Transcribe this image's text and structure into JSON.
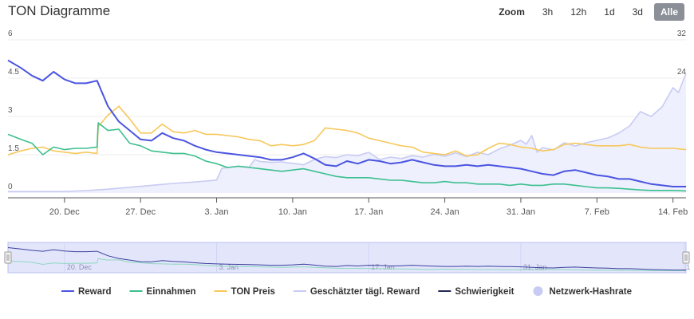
{
  "header": {
    "title": "TON Diagramme"
  },
  "zoom": {
    "label": "Zoom",
    "buttons": [
      "3h",
      "12h",
      "1d",
      "3d",
      "Alle"
    ],
    "active_index": 4
  },
  "chart_data": {
    "type": "line",
    "x_ticks": [
      "20. Dec",
      "27. Dec",
      "3. Jan",
      "10. Jan",
      "17. Jan",
      "24. Jan",
      "31. Jan",
      "7. Feb",
      "14. Feb"
    ],
    "x_tick_days": [
      0,
      7,
      14,
      21,
      28,
      35,
      42,
      49,
      56
    ],
    "x_range_days": [
      -5.2,
      57.2
    ],
    "y_left": {
      "ticks": [
        "0",
        "1.5",
        "3",
        "4.5",
        "6"
      ],
      "range": [
        0,
        6
      ]
    },
    "y_right": {
      "ticks": [
        "0",
        "8",
        "16",
        "24",
        "32"
      ],
      "range": [
        0,
        32
      ]
    },
    "grid": true,
    "legend_position": "bottom",
    "navigator_labels": [
      "20. Dec",
      "3. Jan",
      "17. Jan",
      "31. Jan",
      "1"
    ],
    "series": [
      {
        "name": "Reward",
        "axis": "left",
        "color": "#4b55e0",
        "points": [
          [
            -5.2,
            5.2
          ],
          [
            -4,
            4.9
          ],
          [
            -3,
            4.6
          ],
          [
            -2,
            4.4
          ],
          [
            -1,
            4.75
          ],
          [
            0,
            4.45
          ],
          [
            1,
            4.3
          ],
          [
            2,
            4.3
          ],
          [
            3,
            4.4
          ],
          [
            4,
            3.4
          ],
          [
            5,
            2.8
          ],
          [
            6,
            2.45
          ],
          [
            7,
            2.1
          ],
          [
            8,
            2.05
          ],
          [
            9,
            2.35
          ],
          [
            10,
            2.15
          ],
          [
            11,
            2.05
          ],
          [
            12,
            1.85
          ],
          [
            13,
            1.7
          ],
          [
            14,
            1.6
          ],
          [
            15,
            1.55
          ],
          [
            16,
            1.5
          ],
          [
            17,
            1.45
          ],
          [
            18,
            1.4
          ],
          [
            19,
            1.3
          ],
          [
            20,
            1.3
          ],
          [
            21,
            1.4
          ],
          [
            22,
            1.55
          ],
          [
            23,
            1.35
          ],
          [
            24,
            1.1
          ],
          [
            25,
            1.05
          ],
          [
            26,
            1.25
          ],
          [
            27,
            1.15
          ],
          [
            28,
            1.3
          ],
          [
            29,
            1.25
          ],
          [
            30,
            1.15
          ],
          [
            31,
            1.2
          ],
          [
            32,
            1.3
          ],
          [
            33,
            1.2
          ],
          [
            34,
            1.1
          ],
          [
            35,
            1.05
          ],
          [
            36,
            1.05
          ],
          [
            37,
            1.1
          ],
          [
            38,
            1.05
          ],
          [
            39,
            1.1
          ],
          [
            40,
            1.05
          ],
          [
            41,
            1.0
          ],
          [
            42,
            0.95
          ],
          [
            43,
            0.85
          ],
          [
            44,
            0.75
          ],
          [
            45,
            0.7
          ],
          [
            46,
            0.85
          ],
          [
            47,
            0.9
          ],
          [
            48,
            0.8
          ],
          [
            49,
            0.7
          ],
          [
            50,
            0.65
          ],
          [
            51,
            0.55
          ],
          [
            52,
            0.55
          ],
          [
            53,
            0.45
          ],
          [
            54,
            0.35
          ],
          [
            55,
            0.3
          ],
          [
            56,
            0.25
          ],
          [
            57.2,
            0.25
          ]
        ]
      },
      {
        "name": "Einnahmen",
        "axis": "left",
        "color": "#3cc08e",
        "points": [
          [
            -5.2,
            2.3
          ],
          [
            -4,
            2.1
          ],
          [
            -3,
            1.95
          ],
          [
            -2,
            1.5
          ],
          [
            -1,
            1.8
          ],
          [
            0,
            1.7
          ],
          [
            1,
            1.75
          ],
          [
            2,
            1.75
          ],
          [
            3,
            1.8
          ],
          [
            3.1,
            2.75
          ],
          [
            4,
            2.45
          ],
          [
            5,
            2.5
          ],
          [
            6,
            1.95
          ],
          [
            7,
            1.85
          ],
          [
            8,
            1.65
          ],
          [
            9,
            1.6
          ],
          [
            10,
            1.55
          ],
          [
            11,
            1.55
          ],
          [
            12,
            1.45
          ],
          [
            13,
            1.25
          ],
          [
            14,
            1.15
          ],
          [
            15,
            1.0
          ],
          [
            16,
            1.05
          ],
          [
            17,
            1.0
          ],
          [
            18,
            0.95
          ],
          [
            19,
            0.9
          ],
          [
            20,
            0.85
          ],
          [
            21,
            0.9
          ],
          [
            22,
            0.95
          ],
          [
            23,
            0.85
          ],
          [
            24,
            0.75
          ],
          [
            25,
            0.65
          ],
          [
            26,
            0.6
          ],
          [
            27,
            0.6
          ],
          [
            28,
            0.6
          ],
          [
            29,
            0.55
          ],
          [
            30,
            0.5
          ],
          [
            31,
            0.5
          ],
          [
            32,
            0.45
          ],
          [
            33,
            0.4
          ],
          [
            34,
            0.4
          ],
          [
            35,
            0.45
          ],
          [
            36,
            0.4
          ],
          [
            37,
            0.4
          ],
          [
            38,
            0.35
          ],
          [
            39,
            0.35
          ],
          [
            40,
            0.35
          ],
          [
            41,
            0.3
          ],
          [
            42,
            0.35
          ],
          [
            43,
            0.3
          ],
          [
            44,
            0.3
          ],
          [
            45,
            0.35
          ],
          [
            46,
            0.35
          ],
          [
            47,
            0.3
          ],
          [
            48,
            0.25
          ],
          [
            49,
            0.2
          ],
          [
            50,
            0.2
          ],
          [
            51,
            0.18
          ],
          [
            52,
            0.15
          ],
          [
            53,
            0.12
          ],
          [
            54,
            0.1
          ],
          [
            55,
            0.1
          ],
          [
            56,
            0.1
          ],
          [
            57.2,
            0.08
          ]
        ]
      },
      {
        "name": "TON Preis",
        "axis": "left",
        "color": "#f7c85a",
        "points": [
          [
            -5.2,
            1.5
          ],
          [
            -4,
            1.65
          ],
          [
            -3,
            1.75
          ],
          [
            -2,
            1.8
          ],
          [
            -1,
            1.65
          ],
          [
            0,
            1.6
          ],
          [
            1,
            1.55
          ],
          [
            2,
            1.6
          ],
          [
            3,
            1.55
          ],
          [
            3.1,
            2.6
          ],
          [
            4,
            3.05
          ],
          [
            5,
            3.4
          ],
          [
            6,
            2.9
          ],
          [
            7,
            2.35
          ],
          [
            8,
            2.35
          ],
          [
            9,
            2.7
          ],
          [
            10,
            2.4
          ],
          [
            11,
            2.35
          ],
          [
            12,
            2.45
          ],
          [
            13,
            2.3
          ],
          [
            14,
            2.3
          ],
          [
            15,
            2.25
          ],
          [
            16,
            2.2
          ],
          [
            17,
            2.1
          ],
          [
            18,
            2.05
          ],
          [
            19,
            1.85
          ],
          [
            20,
            1.9
          ],
          [
            21,
            1.85
          ],
          [
            22,
            1.9
          ],
          [
            23,
            2.05
          ],
          [
            24,
            2.55
          ],
          [
            25,
            2.5
          ],
          [
            26,
            2.45
          ],
          [
            27,
            2.35
          ],
          [
            28,
            2.15
          ],
          [
            29,
            2.05
          ],
          [
            30,
            1.95
          ],
          [
            31,
            1.85
          ],
          [
            32,
            1.8
          ],
          [
            33,
            1.6
          ],
          [
            34,
            1.55
          ],
          [
            35,
            1.5
          ],
          [
            36,
            1.65
          ],
          [
            37,
            1.45
          ],
          [
            38,
            1.5
          ],
          [
            39,
            1.75
          ],
          [
            40,
            1.95
          ],
          [
            41,
            1.9
          ],
          [
            42,
            1.8
          ],
          [
            43,
            1.75
          ],
          [
            44,
            1.65
          ],
          [
            45,
            1.7
          ],
          [
            46,
            1.9
          ],
          [
            47,
            1.95
          ],
          [
            48,
            1.9
          ],
          [
            49,
            1.85
          ],
          [
            50,
            1.85
          ],
          [
            51,
            1.85
          ],
          [
            52,
            1.9
          ],
          [
            53,
            1.8
          ],
          [
            54,
            1.75
          ],
          [
            55,
            1.75
          ],
          [
            56,
            1.75
          ],
          [
            57.2,
            1.7
          ]
        ]
      },
      {
        "name": "Geschätzter tägl. Reward",
        "axis": "right",
        "color": "#c8cbf2",
        "points": [
          [
            -5.2,
            0.3
          ],
          [
            0,
            0.3
          ],
          [
            2,
            0.5
          ],
          [
            4,
            0.8
          ],
          [
            6,
            1.2
          ],
          [
            8,
            1.6
          ],
          [
            10,
            2.0
          ],
          [
            12,
            2.3
          ],
          [
            13,
            2.5
          ],
          [
            14,
            2.7
          ],
          [
            14.5,
            5.2
          ],
          [
            15,
            5.3
          ],
          [
            16,
            5.6
          ],
          [
            17,
            5.4
          ],
          [
            17.5,
            7.0
          ],
          [
            18,
            6.6
          ],
          [
            19,
            6.4
          ],
          [
            20,
            6.5
          ],
          [
            21,
            6.2
          ],
          [
            22,
            5.9
          ],
          [
            23,
            7.0
          ],
          [
            24,
            7.6
          ],
          [
            25,
            7.4
          ],
          [
            26,
            8.0
          ],
          [
            27,
            7.8
          ],
          [
            28,
            8.5
          ],
          [
            29,
            7.0
          ],
          [
            30,
            7.5
          ],
          [
            31,
            7.2
          ],
          [
            32,
            7.8
          ],
          [
            33,
            7.5
          ],
          [
            34,
            8.1
          ],
          [
            35,
            7.7
          ],
          [
            36,
            8.4
          ],
          [
            37,
            7.6
          ],
          [
            38,
            8.5
          ],
          [
            39,
            8.0
          ],
          [
            40,
            9.2
          ],
          [
            41,
            10.0
          ],
          [
            42,
            11.0
          ],
          [
            42.5,
            10.2
          ],
          [
            43,
            12.0
          ],
          [
            43.5,
            8.5
          ],
          [
            44,
            9.5
          ],
          [
            45,
            9.0
          ],
          [
            46,
            10.5
          ],
          [
            47,
            9.8
          ],
          [
            48,
            10.5
          ],
          [
            49,
            11.0
          ],
          [
            50,
            11.5
          ],
          [
            51,
            12.5
          ],
          [
            52,
            14.0
          ],
          [
            52.5,
            15.5
          ],
          [
            53,
            17.0
          ],
          [
            54,
            16.0
          ],
          [
            55,
            18.0
          ],
          [
            55.5,
            20.0
          ],
          [
            56,
            22.0
          ],
          [
            56.5,
            21.0
          ],
          [
            57.2,
            25.0
          ]
        ]
      },
      {
        "name": "Schwierigkeit",
        "axis": "right",
        "color": "#23284f",
        "points": []
      },
      {
        "name": "Netzwerk-Hashrate",
        "axis": "right",
        "color": "#c8cbf2",
        "points": []
      }
    ]
  },
  "legend": {
    "items": [
      {
        "name": "Reward",
        "color": "#4b55e0",
        "style": "line"
      },
      {
        "name": "Einnahmen",
        "color": "#3cc08e",
        "style": "line"
      },
      {
        "name": "TON Preis",
        "color": "#f7c85a",
        "style": "line"
      },
      {
        "name": "Geschätzter tägl. Reward",
        "color": "#c8cbf2",
        "style": "line"
      },
      {
        "name": "Schwierigkeit",
        "color": "#23284f",
        "style": "line"
      },
      {
        "name": "Netzwerk-Hashrate",
        "color": "#c8cbf2",
        "style": "circle"
      }
    ]
  }
}
